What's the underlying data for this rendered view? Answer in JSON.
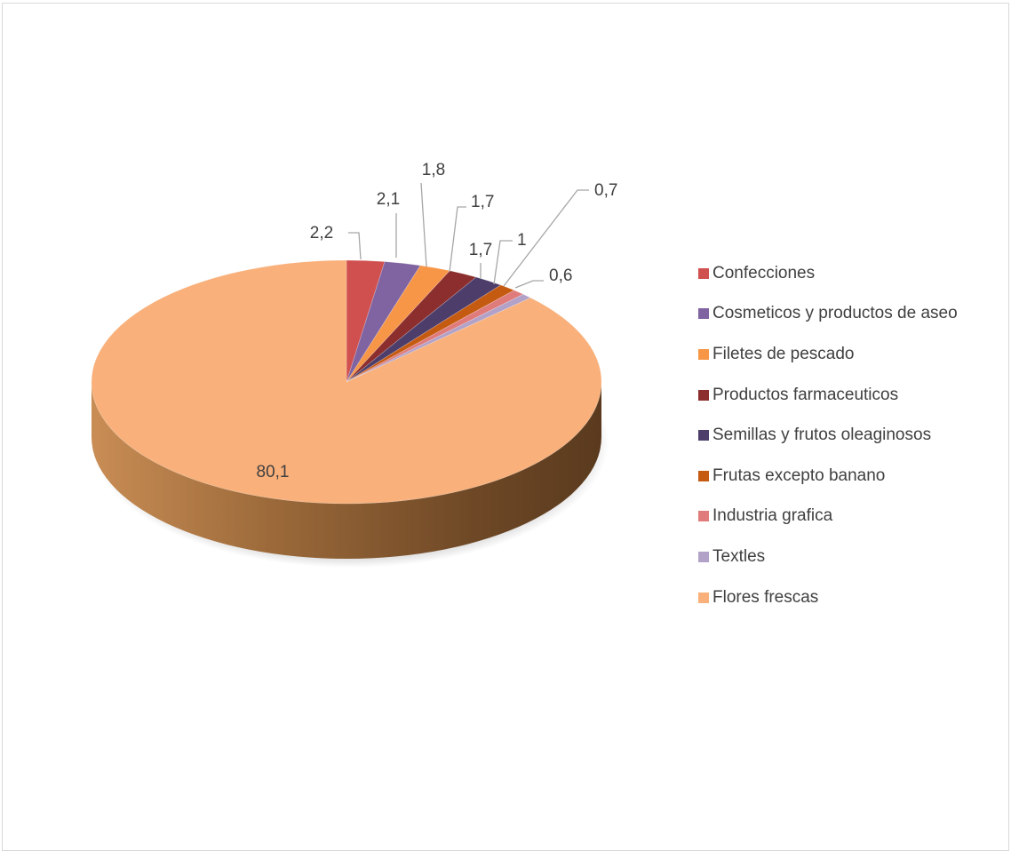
{
  "chart_data": {
    "type": "pie",
    "style": "3d",
    "legend_position": "right",
    "categories": [
      "Confecciones",
      "Cosmeticos y productos de aseo",
      "Filetes de pescado",
      "Productos farmaceuticos",
      "Semillas y frutos oleaginosos",
      "Frutas excepto banano",
      "Industria  grafica",
      "Textles",
      "Flores frescas"
    ],
    "values": [
      2.2,
      2.1,
      1.8,
      1.7,
      1.7,
      1.0,
      0.7,
      0.6,
      80.1
    ],
    "value_labels": [
      "2,2",
      "2,1",
      "1,8",
      "1,7",
      "1,7",
      "1",
      "0,7",
      "0,6",
      "80,1"
    ],
    "colors": [
      "#d0504f",
      "#8064a2",
      "#f79646",
      "#8b2e2d",
      "#4c3d6b",
      "#c55a11",
      "#e07b7b",
      "#b3a2c7",
      "#f9b07a"
    ]
  }
}
